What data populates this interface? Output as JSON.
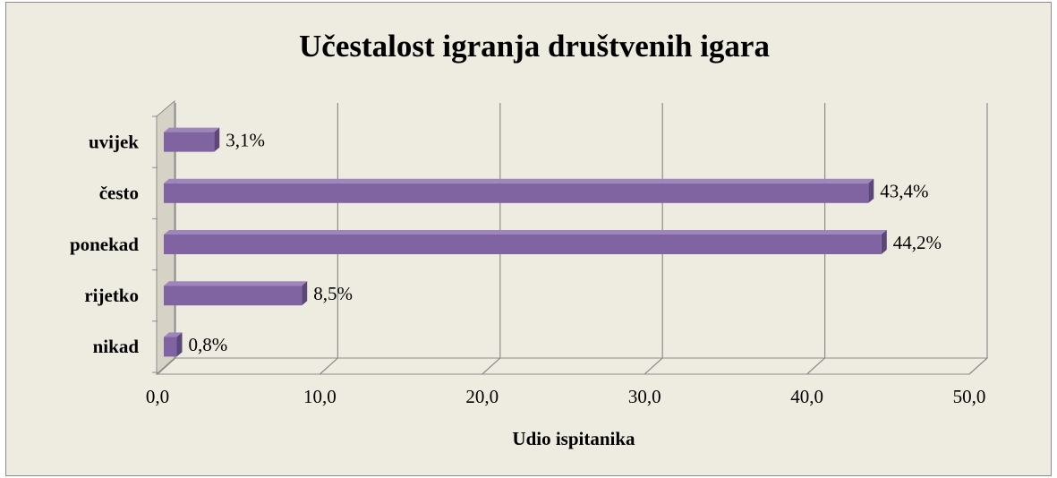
{
  "chart_data": {
    "type": "bar",
    "orientation": "horizontal",
    "title": "Učestalost igranja društvenih igara",
    "x_label": "Udio ispitanika",
    "categories": [
      "uvijek",
      "često",
      "ponekad",
      "rijetko",
      "nikad"
    ],
    "values": [
      3.1,
      43.4,
      44.2,
      8.5,
      0.8
    ],
    "value_labels": [
      "3,1%",
      "43,4%",
      "44,2%",
      "8,5%",
      "0,8%"
    ],
    "color": "#8064a2",
    "xlim": [
      0,
      50
    ],
    "xticks": [
      {
        "value": 0,
        "label": "0,0"
      },
      {
        "value": 10,
        "label": "10,0"
      },
      {
        "value": 20,
        "label": "20,0"
      },
      {
        "value": 30,
        "label": "30,0"
      },
      {
        "value": 40,
        "label": "40,0"
      },
      {
        "value": 50,
        "label": "50,0"
      }
    ],
    "grid": true
  }
}
